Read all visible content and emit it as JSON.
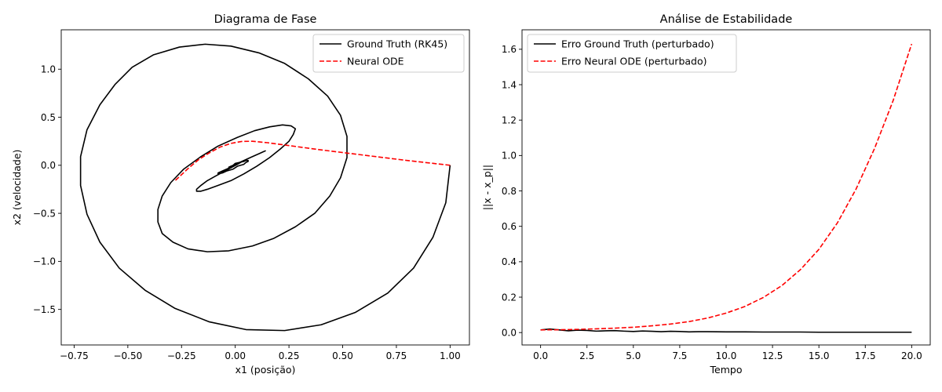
{
  "chart_data": [
    {
      "type": "line",
      "title": "Diagrama de Fase",
      "xlabel": "x1 (posição)",
      "ylabel": "x2 (velocidade)",
      "xlim": [
        -0.81,
        1.09
      ],
      "ylim": [
        -1.87,
        1.41
      ],
      "xticks": [
        -0.75,
        -0.5,
        -0.25,
        0.0,
        0.25,
        0.5,
        0.75,
        1.0
      ],
      "xtick_labels": [
        "−0.75",
        "−0.50",
        "−0.25",
        "0.00",
        "0.25",
        "0.50",
        "0.75",
        "1.00"
      ],
      "yticks": [
        -1.5,
        -1.0,
        -0.5,
        0.0,
        0.5,
        1.0
      ],
      "ytick_labels": [
        "−1.5",
        "−1.0",
        "−0.5",
        "0.0",
        "0.5",
        "1.0"
      ],
      "legend_position": "upper right",
      "series": [
        {
          "name": "Ground Truth (RK45)",
          "color": "#000000",
          "dash": "solid",
          "x": [
            1.0,
            0.98,
            0.92,
            0.83,
            0.71,
            0.56,
            0.4,
            0.23,
            0.05,
            -0.12,
            -0.28,
            -0.42,
            -0.54,
            -0.63,
            -0.69,
            -0.72,
            -0.72,
            -0.69,
            -0.63,
            -0.56,
            -0.48,
            -0.38,
            -0.26,
            -0.14,
            -0.02,
            0.11,
            0.23,
            0.34,
            0.43,
            0.49,
            0.52,
            0.52,
            0.49,
            0.44,
            0.37,
            0.28,
            0.18,
            0.08,
            -0.03,
            -0.13,
            -0.22,
            -0.29,
            -0.34,
            -0.36,
            -0.36,
            -0.34,
            -0.3,
            -0.24,
            -0.16,
            -0.08,
            0.01,
            0.09,
            0.16,
            0.22,
            0.26,
            0.28,
            0.27,
            0.25,
            0.21,
            0.16,
            0.1,
            0.04,
            -0.02,
            -0.08,
            -0.13,
            -0.16,
            -0.18,
            -0.18,
            -0.16,
            -0.13,
            -0.09,
            -0.04,
            0.01,
            0.05,
            0.09,
            0.12,
            0.14,
            0.14,
            0.13,
            0.11,
            0.08,
            0.04,
            0.0,
            -0.03,
            -0.06,
            -0.08,
            -0.08,
            -0.08,
            -0.06,
            -0.04,
            -0.01,
            0.01,
            0.04,
            0.05,
            0.06,
            0.06,
            0.05,
            0.04,
            0.02,
            0.0,
            -0.01,
            -0.02,
            -0.03,
            -0.03,
            -0.02,
            -0.01,
            0.0
          ],
          "y": [
            0.0,
            -0.39,
            -0.75,
            -1.07,
            -1.33,
            -1.53,
            -1.66,
            -1.72,
            -1.71,
            -1.63,
            -1.49,
            -1.3,
            -1.07,
            -0.8,
            -0.51,
            -0.21,
            0.09,
            0.37,
            0.63,
            0.84,
            1.02,
            1.15,
            1.23,
            1.26,
            1.24,
            1.17,
            1.06,
            0.9,
            0.72,
            0.52,
            0.3,
            0.08,
            -0.13,
            -0.32,
            -0.5,
            -0.64,
            -0.76,
            -0.84,
            -0.89,
            -0.9,
            -0.87,
            -0.8,
            -0.71,
            -0.59,
            -0.46,
            -0.32,
            -0.18,
            -0.04,
            0.09,
            0.2,
            0.29,
            0.36,
            0.4,
            0.42,
            0.41,
            0.38,
            0.32,
            0.25,
            0.17,
            0.08,
            -0.01,
            -0.09,
            -0.16,
            -0.21,
            -0.25,
            -0.27,
            -0.27,
            -0.25,
            -0.21,
            -0.16,
            -0.11,
            -0.05,
            0.01,
            0.06,
            0.1,
            0.13,
            0.15,
            0.15,
            0.14,
            0.12,
            0.09,
            0.05,
            0.01,
            -0.03,
            -0.06,
            -0.08,
            -0.09,
            -0.09,
            -0.08,
            -0.06,
            -0.04,
            -0.01,
            0.01,
            0.03,
            0.04,
            0.05,
            0.05,
            0.04,
            0.03,
            0.02,
            0.0,
            -0.01,
            -0.02,
            -0.02,
            -0.01,
            0.0,
            0.0
          ]
        },
        {
          "name": "Neural ODE",
          "color": "#ff0000",
          "dash": "dashed",
          "x": [
            1.0,
            0.8,
            0.6,
            0.4,
            0.25,
            0.15,
            0.08,
            0.03,
            -0.02,
            -0.07,
            -0.12,
            -0.17,
            -0.22,
            -0.28
          ],
          "y": [
            0.0,
            0.05,
            0.105,
            0.16,
            0.205,
            0.235,
            0.25,
            0.248,
            0.228,
            0.19,
            0.13,
            0.06,
            -0.035,
            -0.16
          ]
        }
      ]
    },
    {
      "type": "line",
      "title": "Análise de Estabilidade",
      "xlabel": "Tempo",
      "ylabel": "||x - x_p||",
      "xlim": [
        -1.0,
        21.0
      ],
      "ylim": [
        -0.07,
        1.71
      ],
      "xticks": [
        0,
        2.5,
        5,
        7.5,
        10,
        12.5,
        15,
        17.5,
        20
      ],
      "xtick_labels": [
        "0.0",
        "2.5",
        "5.0",
        "7.5",
        "10.0",
        "12.5",
        "15.0",
        "17.5",
        "20.0"
      ],
      "yticks": [
        0.0,
        0.2,
        0.4,
        0.6,
        0.8,
        1.0,
        1.2,
        1.4,
        1.6
      ],
      "ytick_labels": [
        "0.0",
        "0.2",
        "0.4",
        "0.6",
        "0.8",
        "1.0",
        "1.2",
        "1.4",
        "1.6"
      ],
      "legend_position": "upper left",
      "series": [
        {
          "name": "Erro Ground Truth (perturbado)",
          "color": "#000000",
          "dash": "solid",
          "x": [
            0,
            0.5,
            1,
            1.5,
            2,
            2.5,
            3,
            3.5,
            4,
            4.5,
            5,
            5.5,
            6,
            6.5,
            7,
            7.5,
            8,
            8.5,
            9,
            10,
            11,
            12,
            13,
            14,
            15,
            16,
            17,
            18,
            19,
            20
          ],
          "y": [
            0.015,
            0.02,
            0.015,
            0.01,
            0.014,
            0.012,
            0.008,
            0.01,
            0.011,
            0.008,
            0.006,
            0.009,
            0.007,
            0.005,
            0.007,
            0.006,
            0.004,
            0.005,
            0.005,
            0.004,
            0.004,
            0.003,
            0.003,
            0.003,
            0.002,
            0.002,
            0.002,
            0.002,
            0.002,
            0.002
          ]
        },
        {
          "name": "Erro Neural ODE (perturbado)",
          "color": "#ff0000",
          "dash": "dashed",
          "x": [
            0,
            1,
            2,
            3,
            4,
            5,
            6,
            7,
            8,
            9,
            10,
            11,
            12,
            13,
            14,
            15,
            16,
            17,
            18,
            19,
            20
          ],
          "y": [
            0.015,
            0.016,
            0.018,
            0.021,
            0.025,
            0.03,
            0.038,
            0.048,
            0.062,
            0.082,
            0.11,
            0.147,
            0.198,
            0.265,
            0.355,
            0.47,
            0.62,
            0.81,
            1.04,
            1.31,
            1.63
          ]
        }
      ]
    }
  ]
}
